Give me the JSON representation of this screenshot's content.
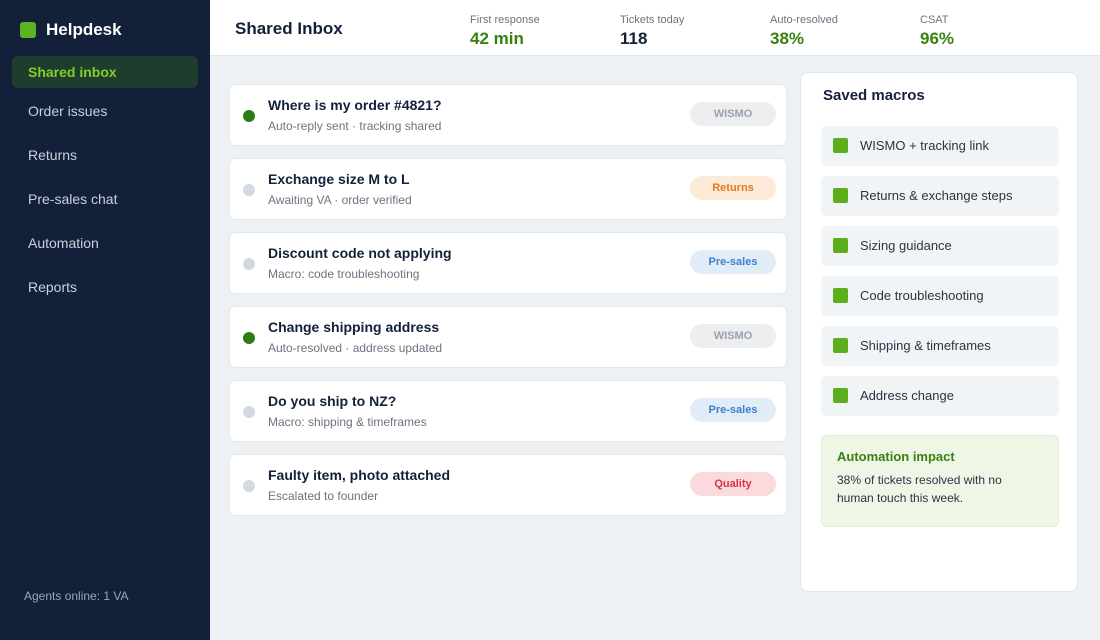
{
  "sidebar": {
    "brand": "Helpdesk",
    "nav": [
      "Shared inbox",
      "Order issues",
      "Returns",
      "Pre-sales chat",
      "Automation",
      "Reports"
    ],
    "footer": "Agents online: 1 VA"
  },
  "header": {
    "title": "Shared Inbox",
    "stats": [
      {
        "label": "First response",
        "value": "42 min"
      },
      {
        "label": "Tickets today",
        "value": "118"
      },
      {
        "label": "Auto-resolved",
        "value": "38%"
      },
      {
        "label": "CSAT",
        "value": "96%"
      }
    ]
  },
  "tickets": [
    {
      "title": "Where is my order #4821?",
      "subtitle": "Auto-reply sent · tracking shared",
      "tag": "WISMO"
    },
    {
      "title": "Exchange size M to L",
      "subtitle": "Awaiting VA · order verified",
      "tag": "Returns"
    },
    {
      "title": "Discount code not applying",
      "subtitle": "Macro: code troubleshooting",
      "tag": "Pre-sales"
    },
    {
      "title": "Change shipping address",
      "subtitle": "Auto-resolved · address updated",
      "tag": "WISMO"
    },
    {
      "title": "Do you ship to NZ?",
      "subtitle": "Macro: shipping & timeframes",
      "tag": "Pre-sales"
    },
    {
      "title": "Faulty item, photo attached",
      "subtitle": "Escalated to founder",
      "tag": "Quality"
    }
  ],
  "macros": {
    "title": "Saved macros",
    "items": [
      "WISMO + tracking link",
      "Returns & exchange steps",
      "Sizing guidance",
      "Code troubleshooting",
      "Shipping & timeframes",
      "Address change"
    ]
  },
  "impact": {
    "title": "Automation impact",
    "text": "38% of tickets resolved with no human touch this week."
  }
}
